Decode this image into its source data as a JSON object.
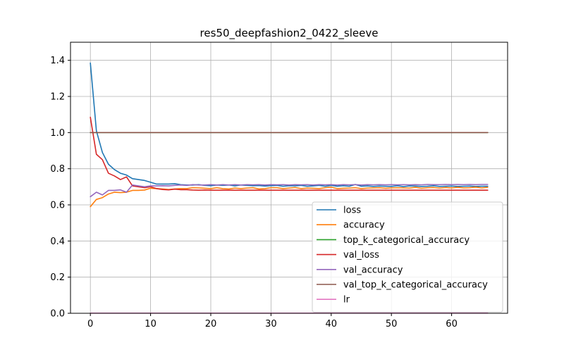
{
  "chart_data": {
    "type": "line",
    "title": "res50_deepfashion2_0422_sleeve",
    "xlabel": "",
    "ylabel": "",
    "xlim": [
      -3.3,
      69.3
    ],
    "ylim": [
      0.0,
      1.5
    ],
    "xticks": [
      0,
      10,
      20,
      30,
      40,
      50,
      60
    ],
    "yticks": [
      0.0,
      0.2,
      0.4,
      0.6,
      0.8,
      1.0,
      1.2,
      1.4
    ],
    "xtick_labels": [
      "0",
      "10",
      "20",
      "30",
      "40",
      "50",
      "60"
    ],
    "ytick_labels": [
      "0.0",
      "0.2",
      "0.4",
      "0.6",
      "0.8",
      "1.0",
      "1.2",
      "1.4"
    ],
    "grid": true,
    "legend_position": "lower-right",
    "series": [
      {
        "name": "loss",
        "color": "#1f77b4",
        "x": [
          0,
          1,
          2,
          3,
          4,
          5,
          6,
          7,
          8,
          9,
          10,
          11,
          12,
          13,
          14,
          15,
          16,
          17,
          18,
          19,
          20,
          21,
          22,
          23,
          24,
          25,
          26,
          27,
          28,
          29,
          30,
          31,
          32,
          33,
          34,
          35,
          36,
          37,
          38,
          39,
          40,
          41,
          42,
          43,
          44,
          45,
          46,
          47,
          48,
          49,
          50,
          51,
          52,
          53,
          54,
          55,
          56,
          57,
          58,
          59,
          60,
          61,
          62,
          63,
          64,
          65,
          66
        ],
        "values": [
          1.385,
          1.01,
          0.89,
          0.825,
          0.795,
          0.775,
          0.765,
          0.745,
          0.74,
          0.735,
          0.725,
          0.715,
          0.715,
          0.715,
          0.717,
          0.712,
          0.71,
          0.71,
          0.712,
          0.708,
          0.706,
          0.71,
          0.708,
          0.71,
          0.705,
          0.71,
          0.708,
          0.706,
          0.707,
          0.704,
          0.706,
          0.708,
          0.703,
          0.706,
          0.705,
          0.708,
          0.703,
          0.705,
          0.708,
          0.703,
          0.708,
          0.703,
          0.706,
          0.703,
          0.713,
          0.703,
          0.705,
          0.702,
          0.704,
          0.703,
          0.702,
          0.706,
          0.701,
          0.705,
          0.704,
          0.702,
          0.703,
          0.706,
          0.702,
          0.703,
          0.704,
          0.702,
          0.703,
          0.704,
          0.702,
          0.703,
          0.703
        ]
      },
      {
        "name": "accuracy",
        "color": "#ff7f0e",
        "x": [
          0,
          1,
          2,
          3,
          4,
          5,
          6,
          7,
          8,
          9,
          10,
          11,
          12,
          13,
          14,
          15,
          16,
          17,
          18,
          19,
          20,
          21,
          22,
          23,
          24,
          25,
          26,
          27,
          28,
          29,
          30,
          31,
          32,
          33,
          34,
          35,
          36,
          37,
          38,
          39,
          40,
          41,
          42,
          43,
          44,
          45,
          46,
          47,
          48,
          49,
          50,
          51,
          52,
          53,
          54,
          55,
          56,
          57,
          58,
          59,
          60,
          61,
          62,
          63,
          64,
          65,
          66
        ],
        "values": [
          0.59,
          0.63,
          0.64,
          0.66,
          0.67,
          0.668,
          0.67,
          0.68,
          0.68,
          0.682,
          0.692,
          0.69,
          0.688,
          0.685,
          0.688,
          0.69,
          0.69,
          0.695,
          0.694,
          0.692,
          0.69,
          0.695,
          0.69,
          0.688,
          0.693,
          0.69,
          0.693,
          0.695,
          0.688,
          0.69,
          0.695,
          0.695,
          0.69,
          0.693,
          0.696,
          0.69,
          0.693,
          0.692,
          0.69,
          0.695,
          0.698,
          0.69,
          0.692,
          0.693,
          0.695,
          0.69,
          0.693,
          0.694,
          0.695,
          0.692,
          0.694,
          0.695,
          0.694,
          0.693,
          0.697,
          0.692,
          0.695,
          0.696,
          0.693,
          0.696,
          0.694,
          0.697,
          0.694,
          0.695,
          0.698,
          0.694,
          0.697
        ]
      },
      {
        "name": "top_k_categorical_accuracy",
        "color": "#2ca02c",
        "x": [
          0,
          66
        ],
        "values": [
          1.0,
          1.0
        ]
      },
      {
        "name": "val_loss",
        "color": "#d62728",
        "x": [
          0,
          1,
          2,
          3,
          4,
          5,
          6,
          7,
          8,
          9,
          10,
          11,
          12,
          13,
          14,
          15,
          16,
          17,
          18,
          19,
          20,
          21,
          22,
          23,
          24,
          25,
          26,
          27,
          28,
          29,
          30,
          31,
          32,
          33,
          34,
          35,
          36,
          37,
          38,
          39,
          40,
          41,
          42,
          43,
          44,
          45,
          46,
          47,
          48,
          49,
          50,
          51,
          52,
          53,
          54,
          55,
          56,
          57,
          58,
          59,
          60,
          61,
          62,
          63,
          64,
          65,
          66
        ],
        "values": [
          1.085,
          0.88,
          0.85,
          0.775,
          0.76,
          0.74,
          0.755,
          0.705,
          0.7,
          0.695,
          0.7,
          0.69,
          0.685,
          0.683,
          0.687,
          0.684,
          0.684,
          0.682,
          0.681,
          0.682,
          0.681,
          0.681,
          0.681,
          0.681,
          0.681,
          0.681,
          0.681,
          0.681,
          0.681,
          0.681,
          0.681,
          0.681,
          0.681,
          0.681,
          0.681,
          0.681,
          0.681,
          0.681,
          0.681,
          0.681,
          0.681,
          0.681,
          0.681,
          0.681,
          0.681,
          0.681,
          0.681,
          0.681,
          0.681,
          0.681,
          0.681,
          0.681,
          0.681,
          0.681,
          0.681,
          0.681,
          0.681,
          0.681,
          0.681,
          0.681,
          0.681,
          0.681,
          0.681,
          0.681,
          0.681,
          0.681,
          0.681
        ]
      },
      {
        "name": "val_accuracy",
        "color": "#9467bd",
        "x": [
          0,
          1,
          2,
          3,
          4,
          5,
          6,
          7,
          8,
          9,
          10,
          11,
          12,
          13,
          14,
          15,
          16,
          17,
          18,
          19,
          20,
          21,
          22,
          23,
          24,
          25,
          26,
          27,
          28,
          29,
          30,
          31,
          32,
          33,
          34,
          35,
          36,
          37,
          38,
          39,
          40,
          41,
          42,
          43,
          44,
          45,
          46,
          47,
          48,
          49,
          50,
          51,
          52,
          53,
          54,
          55,
          56,
          57,
          58,
          59,
          60,
          61,
          62,
          63,
          64,
          65,
          66
        ],
        "values": [
          0.645,
          0.67,
          0.655,
          0.68,
          0.68,
          0.683,
          0.67,
          0.71,
          0.705,
          0.7,
          0.705,
          0.705,
          0.706,
          0.705,
          0.708,
          0.71,
          0.708,
          0.712,
          0.71,
          0.71,
          0.712,
          0.71,
          0.712,
          0.71,
          0.712,
          0.71,
          0.712,
          0.711,
          0.712,
          0.71,
          0.712,
          0.711,
          0.712,
          0.71,
          0.712,
          0.711,
          0.712,
          0.71,
          0.712,
          0.711,
          0.712,
          0.71,
          0.712,
          0.711,
          0.712,
          0.71,
          0.712,
          0.711,
          0.712,
          0.711,
          0.712,
          0.711,
          0.712,
          0.711,
          0.712,
          0.711,
          0.713,
          0.712,
          0.712,
          0.713,
          0.712,
          0.713,
          0.712,
          0.713,
          0.712,
          0.713,
          0.713
        ]
      },
      {
        "name": "val_top_k_categorical_accuracy",
        "color": "#8c564b",
        "x": [
          0,
          66
        ],
        "values": [
          1.0,
          1.0
        ]
      },
      {
        "name": "lr",
        "color": "#e377c2",
        "x": [
          0,
          66
        ],
        "values": [
          0.001,
          0.001
        ]
      }
    ]
  }
}
